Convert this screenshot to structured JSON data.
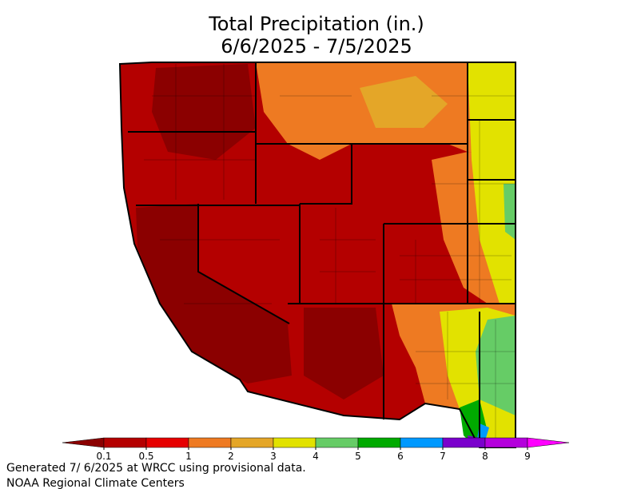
{
  "title": [
    "Total Precipitation (in.)",
    "6/6/2025 - 7/5/2025"
  ],
  "legend": {
    "ticks": [
      0.1,
      0.5,
      1,
      2,
      3,
      4,
      5,
      6,
      7,
      8,
      9
    ],
    "colors": [
      "#8b0000",
      "#b40000",
      "#e60000",
      "#ee7a22",
      "#e4a628",
      "#e2e200",
      "#66cc66",
      "#00aa00",
      "#0099ff",
      "#7a00cc",
      "#b400dc",
      "#ff00ff"
    ]
  },
  "footer": [
    "Generated 7/ 6/2025 at WRCC using provisional data.",
    "NOAA Regional Climate Centers"
  ]
}
